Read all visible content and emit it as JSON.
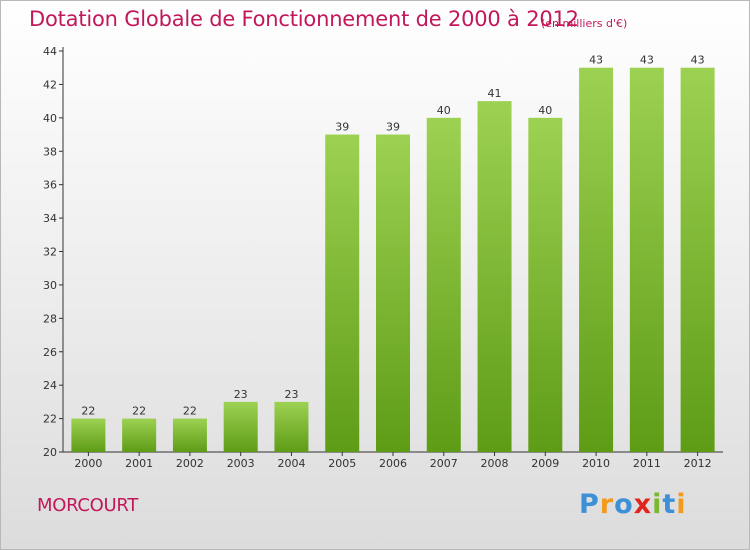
{
  "title": "Dotation Globale de Fonctionnement de 2000 à 2012",
  "subtitle": "(en milliers d'€)",
  "commune": "MORCOURT",
  "logo": {
    "text": "Proxiti",
    "letter_colors": [
      "#3d8fd6",
      "#f39a1e",
      "#3d8fd6",
      "#e0261c",
      "#7cb82f",
      "#3d8fd6",
      "#f39a1e"
    ]
  },
  "colors": {
    "title": "#c2185b",
    "bar_light": "#9dd152",
    "bar_dark": "#5e9c16",
    "axis": "#333333"
  },
  "chart_data": {
    "type": "bar",
    "categories": [
      "2000",
      "2001",
      "2002",
      "2003",
      "2004",
      "2005",
      "2006",
      "2007",
      "2008",
      "2009",
      "2010",
      "2011",
      "2012"
    ],
    "values": [
      22,
      22,
      22,
      23,
      23,
      39,
      39,
      40,
      41,
      40,
      43,
      43,
      43
    ],
    "ylim": [
      20,
      44
    ],
    "yticks": [
      20,
      22,
      24,
      26,
      28,
      30,
      32,
      34,
      36,
      38,
      40,
      42,
      44
    ],
    "grid": false
  }
}
